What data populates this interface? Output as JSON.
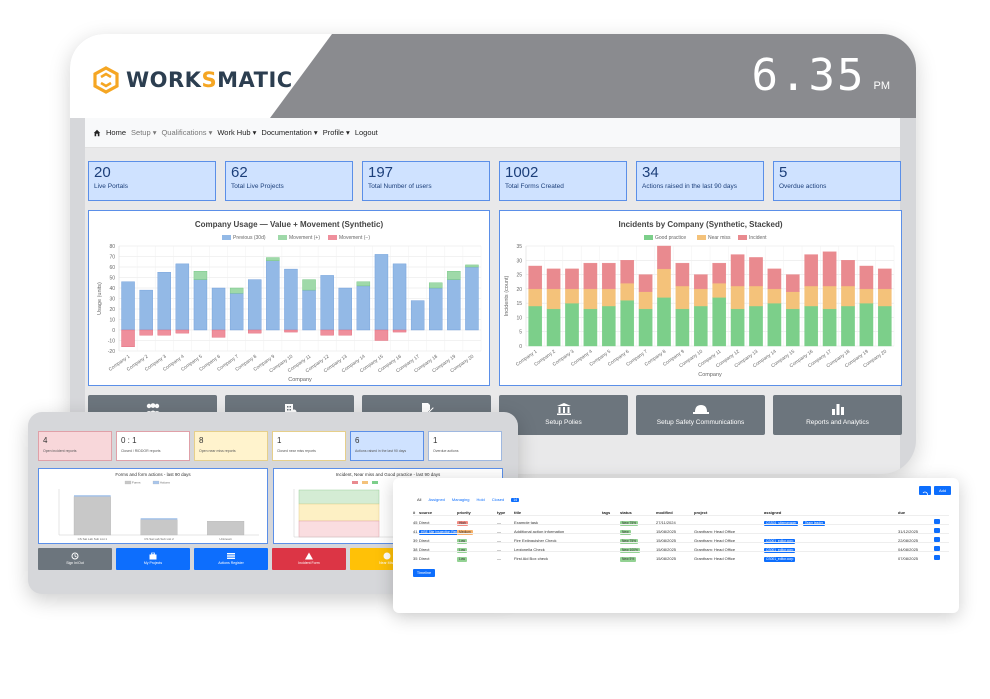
{
  "brand": {
    "name_a": "WORK",
    "name_b": "S",
    "name_c": "MATIC"
  },
  "clock": {
    "time": "6.35",
    "ampm": "PM"
  },
  "nav": {
    "items": [
      {
        "label": "Home",
        "dim": false
      },
      {
        "label": "Setup ▾",
        "dim": true
      },
      {
        "label": "Qualifications ▾",
        "dim": true
      },
      {
        "label": "Work Hub ▾",
        "dim": false
      },
      {
        "label": "Documentation ▾",
        "dim": false
      },
      {
        "label": "Profile ▾",
        "dim": false
      },
      {
        "label": "Logout",
        "dim": false
      }
    ]
  },
  "stats": [
    {
      "value": "20",
      "label": "Live Portals"
    },
    {
      "value": "62",
      "label": "Total Live Projects"
    },
    {
      "value": "197",
      "label": "Total Number of users"
    },
    {
      "value": "1002",
      "label": "Total Forms Created"
    },
    {
      "value": "34",
      "label": "Actions raised in the last 90 days"
    },
    {
      "value": "5",
      "label": "Overdue actions"
    }
  ],
  "chart_data": [
    {
      "type": "bar",
      "title": "Company Usage — Value + Movement (Synthetic)",
      "xlabel": "Company",
      "ylabel": "Usage (units)",
      "ylim": [
        -20,
        80
      ],
      "yticks": [
        -20,
        -10,
        0,
        10,
        20,
        30,
        40,
        50,
        60,
        70,
        80
      ],
      "legend": "top",
      "grid": true,
      "categories": [
        "Company 1",
        "Company 2",
        "Company 3",
        "Company 4",
        "Company 5",
        "Company 6",
        "Company 7",
        "Company 8",
        "Company 9",
        "Company 10",
        "Company 11",
        "Company 12",
        "Company 13",
        "Company 14",
        "Company 15",
        "Company 16",
        "Company 17",
        "Company 18",
        "Company 19",
        "Company 20"
      ],
      "series": [
        {
          "name": "Previous (30d)",
          "color": "#93b9e6",
          "values": [
            46,
            38,
            55,
            63,
            48,
            40,
            35,
            48,
            66,
            58,
            38,
            52,
            40,
            42,
            72,
            63,
            28,
            40,
            48,
            60
          ]
        },
        {
          "name": "Movement (+)",
          "color": "#9fd9a9",
          "values": [
            0,
            0,
            0,
            0,
            8,
            0,
            5,
            0,
            3,
            0,
            10,
            0,
            0,
            4,
            0,
            0,
            0,
            5,
            8,
            2
          ]
        },
        {
          "name": "Movement (−)",
          "color": "#ef8f9c",
          "values": [
            -16,
            -5,
            -5,
            -3,
            0,
            -7,
            0,
            -3,
            0,
            -2,
            0,
            -5,
            -5,
            0,
            -10,
            -2,
            0,
            0,
            0,
            0
          ]
        }
      ]
    },
    {
      "type": "bar",
      "stacked": true,
      "title": "Incidents by Company (Synthetic, Stacked)",
      "xlabel": "Company",
      "ylabel": "Incidents (count)",
      "ylim": [
        0,
        35
      ],
      "yticks": [
        0,
        5,
        10,
        15,
        20,
        25,
        30,
        35
      ],
      "legend": "top",
      "grid": true,
      "categories": [
        "Company 1",
        "Company 2",
        "Company 3",
        "Company 4",
        "Company 5",
        "Company 6",
        "Company 7",
        "Company 8",
        "Company 9",
        "Company 10",
        "Company 11",
        "Company 12",
        "Company 13",
        "Company 14",
        "Company 15",
        "Company 16",
        "Company 17",
        "Company 18",
        "Company 19",
        "Company 20"
      ],
      "series": [
        {
          "name": "Good practice",
          "color": "#7ccf8a",
          "values": [
            14,
            13,
            15,
            13,
            14,
            16,
            13,
            17,
            13,
            14,
            17,
            13,
            14,
            15,
            13,
            14,
            13,
            14,
            15,
            14
          ]
        },
        {
          "name": "Near miss",
          "color": "#f4c27a",
          "values": [
            6,
            7,
            5,
            7,
            6,
            6,
            6,
            10,
            8,
            6,
            5,
            8,
            7,
            5,
            6,
            7,
            8,
            7,
            5,
            6
          ]
        },
        {
          "name": "Incident",
          "color": "#e98a8f",
          "values": [
            8,
            7,
            7,
            9,
            9,
            8,
            6,
            8,
            8,
            5,
            7,
            11,
            10,
            7,
            6,
            11,
            12,
            9,
            8,
            7
          ]
        }
      ]
    },
    {
      "type": "bar",
      "title": "Forms and form actions - last 90 days",
      "legend": "top",
      "grid": true,
      "ylim": [
        0,
        30
      ],
      "categories": [
        "CS Sat Lab Sub List 1",
        "CS Sat Lab Sub List 2",
        "Unknown"
      ],
      "series": [
        {
          "name": "Forms",
          "color": "#c8c8c8",
          "values": [
            25,
            10,
            9
          ]
        },
        {
          "name": "Actions",
          "color": "#a9c6ec",
          "values": [
            1,
            1,
            0
          ]
        }
      ]
    }
  ],
  "action_buttons": [
    {
      "label": "",
      "icon": "group-icon"
    },
    {
      "label": "",
      "icon": "building-icon"
    },
    {
      "label": "",
      "icon": "document-edit-icon"
    },
    {
      "label": "Setup Polies",
      "icon": "bank-icon"
    },
    {
      "label": "Setup Safety Communications",
      "icon": "hard-hat-icon"
    },
    {
      "label": "Reports and Analytics",
      "icon": "bar-chart-icon"
    }
  ],
  "tablet": {
    "cards": [
      {
        "value": "4",
        "label": "Open incident reports",
        "bg": "#f8d7da",
        "border": "#e0a0a8"
      },
      {
        "value": "0 : 1",
        "label": "Closed / RIDDOR reports",
        "bg": "#ffffff",
        "border": "#e0a0a8"
      },
      {
        "value": "8",
        "label": "Open near miss reports",
        "bg": "#fff3cd",
        "border": "#e6cf8a"
      },
      {
        "value": "1",
        "label": "Closed near miss reports",
        "bg": "#ffffff",
        "border": "#e6cf8a"
      },
      {
        "value": "6",
        "label": "Actions raised in the last 90 days",
        "bg": "#cfe2ff",
        "border": "#5b8fe8"
      },
      {
        "value": "1",
        "label": "Overdue actions",
        "bg": "#ffffff",
        "border": "#9fb8e0"
      }
    ],
    "chart2_title": "Incident, Near miss and Good practice - last 90 days",
    "buttons": [
      {
        "label": "Sign In/Out",
        "color": "#6c757d",
        "icon": "history-icon"
      },
      {
        "label": "My Projects",
        "color": "#0d6efd",
        "icon": "briefcase-icon"
      },
      {
        "label": "Actions Register",
        "color": "#0d6efd",
        "icon": "list-icon"
      },
      {
        "label": "Incident Form",
        "color": "#dc3545",
        "icon": "alert-icon"
      },
      {
        "label": "Near Miss",
        "color": "#ffc107",
        "icon": "info-icon"
      }
    ]
  },
  "actions_table": {
    "tabs": [
      "All",
      "Assigned",
      "Managing",
      "Hold",
      "Closed"
    ],
    "tab_count": "14",
    "columns": [
      "#",
      "source",
      "priority",
      "type",
      "title",
      "tags",
      "status",
      "modified",
      "project",
      "assigned",
      "due"
    ],
    "rows": [
      {
        "num": "45",
        "source": "Direct",
        "source_tag": "",
        "priority": "High",
        "pcolor": "#f28b82",
        "type": "—",
        "title": "Example task",
        "status": "New 75%",
        "modified": "27/11/2024",
        "project": "",
        "assigned": "CSS01_sitemanager",
        "assigned2": "Team leader",
        "due": ""
      },
      {
        "num": "41",
        "source": "",
        "source_tag": "HSE Site Inspection Report",
        "priority": "Medium",
        "pcolor": "#f6b26b",
        "type": "—",
        "title": "Additional action information",
        "status": "New",
        "modified": "15/08/2025",
        "project": "Grantham: Head Office",
        "assigned": "",
        "assigned2": "",
        "due": "31/12/2025"
      },
      {
        "num": "39",
        "source": "Direct",
        "source_tag": "",
        "priority": "Low",
        "pcolor": "#93d293",
        "type": "—",
        "title": "Fire Extinguisher Check",
        "status": "New 75%",
        "modified": "15/08/2025",
        "project": "Grantham: Head Office",
        "assigned": "CS001_editor.corp",
        "assigned2": "",
        "due": "22/08/2025"
      },
      {
        "num": "38",
        "source": "Direct",
        "source_tag": "",
        "priority": "Low",
        "pcolor": "#93d293",
        "type": "—",
        "title": "Legionella Check",
        "status": "New 100%",
        "modified": "15/08/2025",
        "project": "Grantham: Head Office",
        "assigned": "CS001_editor.corp",
        "assigned2": "",
        "due": "04/08/2025"
      },
      {
        "num": "35",
        "source": "Direct",
        "source_tag": "",
        "priority": "Low",
        "pcolor": "#93d293",
        "type": "—",
        "title": "First Aid Box check",
        "status": "New 5%",
        "modified": "15/08/2025",
        "project": "Grantham: Head Office",
        "assigned": "CS001_editor.corp",
        "assigned2": "",
        "due": "07/08/2025"
      }
    ],
    "timeline_label": "Timeline",
    "add_label": "Add"
  }
}
